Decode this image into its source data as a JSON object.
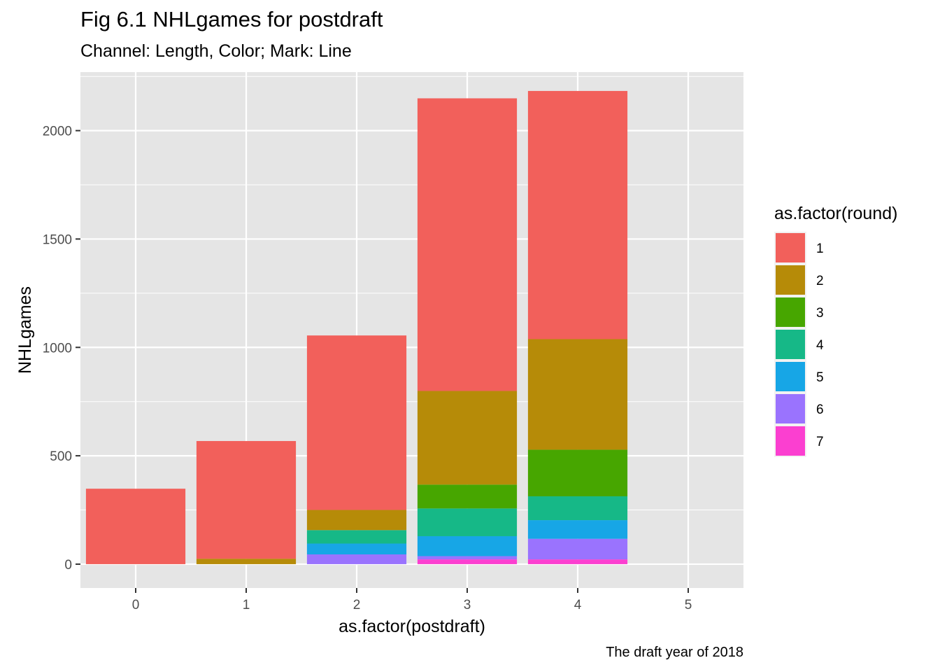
{
  "colors": {
    "panel": "#e5e5e5",
    "grid": "#ffffff",
    "round_1": "#f2605b",
    "round_2": "#b68b08",
    "round_3": "#47a600",
    "round_4": "#16b887",
    "round_5": "#17a6e6",
    "round_6": "#9a73fe",
    "round_7": "#fb3fd0"
  },
  "chart_data": {
    "type": "bar",
    "stacked": true,
    "title": "Fig 6.1 NHLgames for postdraft",
    "subtitle": "Channel: Length, Color; Mark: Line",
    "caption": "The draft year of 2018",
    "xlabel": "as.factor(postdraft)",
    "ylabel": "NHLgames",
    "categories": [
      "0",
      "1",
      "2",
      "3",
      "4",
      "5"
    ],
    "ylim": [
      -110,
      2270
    ],
    "yticks": [
      0,
      500,
      1000,
      1500,
      2000
    ],
    "grid": true,
    "legend_title": "as.factor(round)",
    "legend_position": "right",
    "series": [
      {
        "name": "1",
        "values": [
          348,
          543,
          805,
          1350,
          1145,
          0
        ]
      },
      {
        "name": "2",
        "values": [
          0,
          25,
          93,
          432,
          510,
          0
        ]
      },
      {
        "name": "3",
        "values": [
          0,
          0,
          0,
          110,
          215,
          0
        ]
      },
      {
        "name": "4",
        "values": [
          0,
          0,
          62,
          128,
          110,
          0
        ]
      },
      {
        "name": "5",
        "values": [
          0,
          0,
          50,
          92,
          86,
          0
        ]
      },
      {
        "name": "6",
        "values": [
          0,
          0,
          45,
          15,
          95,
          0
        ]
      },
      {
        "name": "7",
        "values": [
          0,
          0,
          0,
          22,
          22,
          0
        ]
      }
    ]
  }
}
